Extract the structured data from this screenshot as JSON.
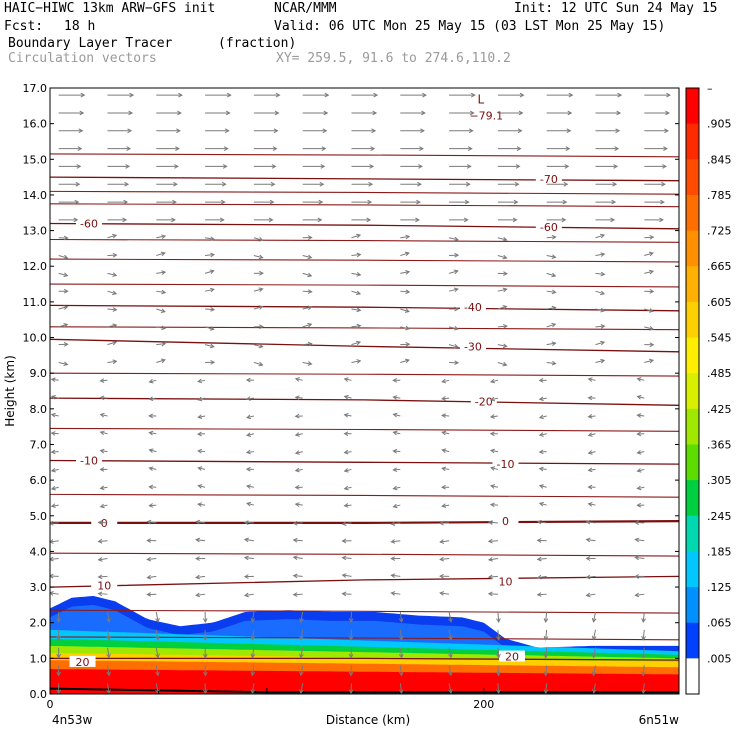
{
  "header": {
    "model": "HAIC−HIWC 13km ARW−GFS init",
    "org": "NCAR/MMM",
    "init": "Init: 12 UTC Sun 24 May 15",
    "fcst_label": "Fcst:",
    "fcst_value": "18 h",
    "valid": "Valid: 06 UTC Mon 25 May 15 (03 LST Mon 25 May 15)",
    "field1_name": "Boundary Layer Tracer",
    "field1_units": "(fraction)",
    "field2_name": "Circulation vectors",
    "xy_info": "XY= 259.5, 91.6 to 274.6,110.2"
  },
  "chart_data": {
    "type": "heatmap",
    "xlabel": "Distance (km)",
    "ylabel": "Height (km)",
    "xlim": [
      0,
      290
    ],
    "ylim": [
      0,
      17
    ],
    "x_ticks": [
      0,
      200
    ],
    "x_tick_labels": [
      "0",
      "200"
    ],
    "x_end_labels": [
      "4n53w",
      "6n51w"
    ],
    "y_ticks": [
      0,
      1,
      2,
      3,
      4,
      5,
      6,
      7,
      8,
      9,
      10,
      11,
      12,
      13,
      14,
      15,
      16,
      17
    ],
    "y_tick_labels": [
      "0.0",
      "1.0",
      "2.0",
      "3.0",
      "4.0",
      "5.0",
      "6.0",
      "7.0",
      "8.0",
      "9.0",
      "10.0",
      "11.0",
      "12.0",
      "13.0",
      "14.0",
      "15.0",
      "16.0",
      "17.0"
    ],
    "colorbar": {
      "labels": [
        "–",
        ".905",
        ".845",
        ".785",
        ".725",
        ".665",
        ".605",
        ".545",
        ".485",
        ".425",
        ".365",
        ".305",
        ".245",
        ".185",
        ".125",
        ".065",
        ".005"
      ],
      "colors": [
        "#ff0000",
        "#ff2a00",
        "#ff4c00",
        "#ff6e00",
        "#ff9000",
        "#ffb000",
        "#ffd000",
        "#ffee00",
        "#d8f000",
        "#a0e800",
        "#5cdc00",
        "#00d040",
        "#00d8b0",
        "#00c8ff",
        "#0090ff",
        "#0040ff",
        "#ffffff"
      ]
    },
    "tracer_top": [
      {
        "x": 0,
        "h": 2.4
      },
      {
        "x": 10,
        "h": 2.7
      },
      {
        "x": 20,
        "h": 2.75
      },
      {
        "x": 30,
        "h": 2.6
      },
      {
        "x": 45,
        "h": 2.1
      },
      {
        "x": 60,
        "h": 1.9
      },
      {
        "x": 75,
        "h": 2.0
      },
      {
        "x": 90,
        "h": 2.3
      },
      {
        "x": 110,
        "h": 2.35
      },
      {
        "x": 130,
        "h": 2.3
      },
      {
        "x": 150,
        "h": 2.3
      },
      {
        "x": 170,
        "h": 2.2
      },
      {
        "x": 190,
        "h": 2.15
      },
      {
        "x": 200,
        "h": 2.0
      },
      {
        "x": 210,
        "h": 1.55
      },
      {
        "x": 225,
        "h": 1.3
      },
      {
        "x": 250,
        "h": 1.35
      },
      {
        "x": 290,
        "h": 1.35
      }
    ],
    "tracer_bands": [
      {
        "frac": 0.0,
        "color": "#ff0000",
        "top": [
          [
            0,
            0.7
          ],
          [
            290,
            0.55
          ]
        ]
      },
      {
        "frac": 0.2,
        "color": "#ff6e00",
        "top": [
          [
            0,
            0.95
          ],
          [
            290,
            0.75
          ]
        ]
      },
      {
        "frac": 0.4,
        "color": "#ffd000",
        "top": [
          [
            0,
            1.15
          ],
          [
            290,
            0.9
          ]
        ]
      },
      {
        "frac": 0.5,
        "color": "#a0e800",
        "top": [
          [
            0,
            1.35
          ],
          [
            290,
            1.0
          ]
        ]
      },
      {
        "frac": 0.6,
        "color": "#00d040",
        "top": [
          [
            0,
            1.55
          ],
          [
            290,
            1.1
          ]
        ]
      },
      {
        "frac": 0.7,
        "color": "#00c8ff",
        "top": [
          [
            0,
            1.8
          ],
          [
            290,
            1.2
          ]
        ]
      }
    ],
    "temperature_contours": [
      {
        "label": "20",
        "points": [
          [
            0,
            1.0
          ],
          [
            145,
            1.0
          ],
          [
            290,
            0.95
          ]
        ],
        "label_pos": [
          [
            15,
            0.9
          ],
          [
            213,
            1.05
          ]
        ]
      },
      {
        "label": "10",
        "points": [
          [
            0,
            3.0
          ],
          [
            145,
            3.2
          ],
          [
            290,
            3.3
          ]
        ],
        "label_pos": [
          [
            25,
            3.05
          ],
          [
            210,
            3.15
          ]
        ]
      },
      {
        "label": "0",
        "points": [
          [
            0,
            4.8
          ],
          [
            145,
            4.8
          ],
          [
            290,
            4.85
          ]
        ],
        "label_pos": [
          [
            25,
            4.8
          ],
          [
            210,
            4.85
          ]
        ]
      },
      {
        "label": "-10",
        "points": [
          [
            0,
            6.55
          ],
          [
            145,
            6.5
          ],
          [
            290,
            6.45
          ]
        ],
        "label_pos": [
          [
            18,
            6.55
          ],
          [
            210,
            6.45
          ]
        ]
      },
      {
        "label": "-20",
        "points": [
          [
            0,
            8.3
          ],
          [
            145,
            8.25
          ],
          [
            290,
            8.1
          ]
        ],
        "label_pos": [
          [
            200,
            8.2
          ]
        ]
      },
      {
        "label": "-30",
        "points": [
          [
            0,
            9.95
          ],
          [
            145,
            9.75
          ],
          [
            290,
            9.6
          ]
        ],
        "label_pos": [
          [
            195,
            9.75
          ]
        ]
      },
      {
        "label": "-40",
        "points": [
          [
            0,
            10.9
          ],
          [
            145,
            10.85
          ],
          [
            290,
            10.75
          ]
        ],
        "label_pos": [
          [
            195,
            10.85
          ]
        ]
      },
      {
        "label": "-60",
        "points": [
          [
            0,
            13.2
          ],
          [
            145,
            13.15
          ],
          [
            290,
            13.05
          ]
        ],
        "label_pos": [
          [
            18,
            13.2
          ],
          [
            230,
            13.1
          ]
        ]
      },
      {
        "label": "-70",
        "points": [
          [
            0,
            14.5
          ],
          [
            145,
            14.45
          ],
          [
            290,
            14.4
          ]
        ],
        "label_pos": [
          [
            230,
            14.45
          ]
        ]
      }
    ],
    "extra_isotherms": [
      1.6,
      2.35,
      3.95,
      5.6,
      7.45,
      9.0,
      10.3,
      11.5,
      12.2,
      12.75,
      13.75,
      14.1,
      15.15
    ],
    "min_marker": {
      "letter": "L",
      "value": "−79.1",
      "x": 198,
      "y": 16.4
    }
  }
}
